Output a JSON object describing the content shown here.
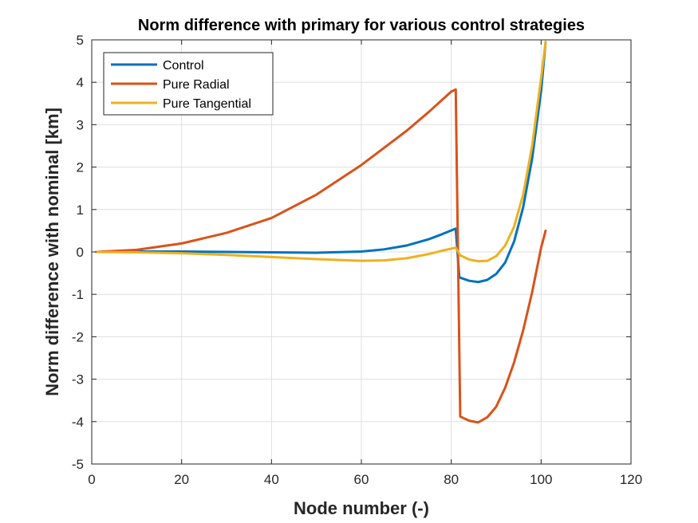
{
  "chart_data": {
    "type": "line",
    "title": "Norm difference with primary for various control strategies",
    "xlabel": "Node number (-)",
    "ylabel": "Norm difference with nominal [km]",
    "xlim": [
      0,
      120
    ],
    "ylim": [
      -5,
      5
    ],
    "xticks": [
      0,
      20,
      40,
      60,
      80,
      100,
      120
    ],
    "yticks": [
      -5,
      -4,
      -3,
      -2,
      -1,
      0,
      1,
      2,
      3,
      4,
      5
    ],
    "grid": true,
    "legend": "top-left",
    "series": [
      {
        "name": "Control",
        "color": "#0072BD",
        "x": [
          1,
          10,
          20,
          30,
          40,
          50,
          60,
          65,
          70,
          75,
          78,
          81,
          81.8,
          84,
          86,
          88,
          90,
          92,
          94,
          96,
          98,
          100,
          101
        ],
        "y": [
          0,
          0.01,
          0.01,
          0,
          -0.01,
          -0.02,
          0.01,
          0.06,
          0.15,
          0.3,
          0.42,
          0.55,
          -0.6,
          -0.68,
          -0.71,
          -0.66,
          -0.52,
          -0.25,
          0.25,
          1.05,
          2.2,
          3.8,
          4.95
        ]
      },
      {
        "name": "Pure Radial",
        "color": "#D95319",
        "x": [
          1,
          10,
          20,
          30,
          40,
          50,
          60,
          70,
          75,
          80,
          81,
          82,
          84,
          86,
          88,
          90,
          92,
          94,
          96,
          98,
          100,
          101
        ],
        "y": [
          0,
          0.05,
          0.2,
          0.45,
          0.8,
          1.35,
          2.05,
          2.85,
          3.3,
          3.78,
          3.83,
          -3.88,
          -3.98,
          -4.02,
          -3.9,
          -3.65,
          -3.2,
          -2.6,
          -1.85,
          -0.95,
          0.1,
          0.5
        ]
      },
      {
        "name": "Pure Tangential",
        "color": "#EDB120",
        "x": [
          1,
          10,
          20,
          30,
          40,
          50,
          55,
          60,
          65,
          70,
          75,
          78,
          81,
          82,
          84,
          86,
          88,
          90,
          92,
          94,
          96,
          98,
          100,
          101
        ],
        "y": [
          0,
          -0.01,
          -0.03,
          -0.07,
          -0.12,
          -0.17,
          -0.19,
          -0.21,
          -0.2,
          -0.15,
          -0.05,
          0.03,
          0.1,
          -0.08,
          -0.18,
          -0.22,
          -0.21,
          -0.1,
          0.15,
          0.6,
          1.35,
          2.5,
          4.1,
          4.95
        ]
      }
    ]
  }
}
